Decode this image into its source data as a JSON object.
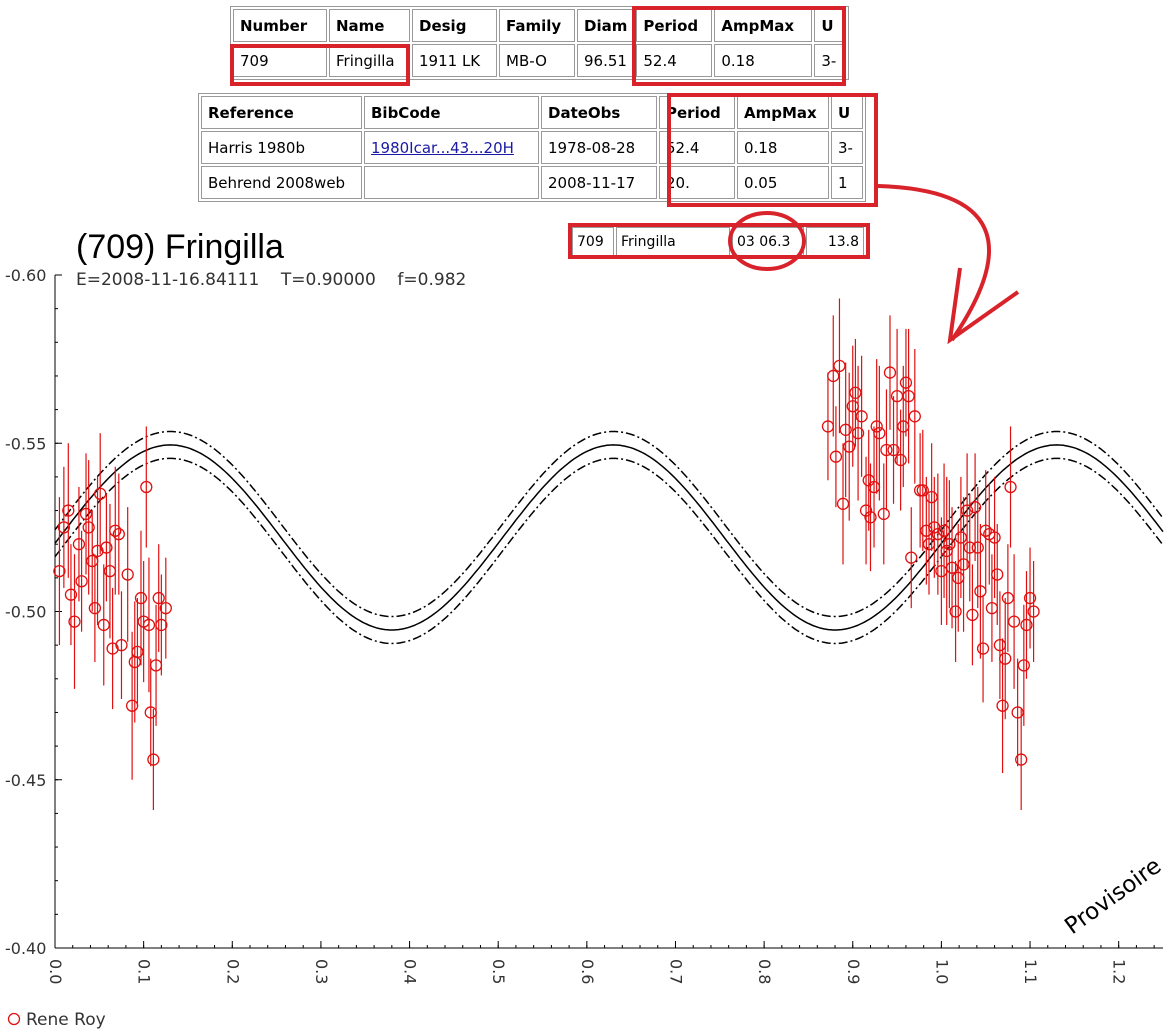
{
  "summary_table": {
    "headers": [
      "Number",
      "Name",
      "Desig",
      "Family",
      "Diam",
      "Period",
      "AmpMax",
      "U"
    ],
    "row": [
      "709",
      "Fringilla",
      "1911 LK",
      "MB-O",
      "96.51",
      "52.4",
      "0.18",
      "3-"
    ]
  },
  "reference_table": {
    "headers": [
      "Reference",
      "BibCode",
      "DateObs",
      "Period",
      "AmpMax",
      "U"
    ],
    "rows": [
      [
        "Harris 1980b",
        "1980Icar...43...20H",
        "1978-08-28",
        "52.4",
        "0.18",
        "3-"
      ],
      [
        "Behrend 2008web",
        "",
        "2008-11-17",
        "20.",
        "0.05",
        "1"
      ]
    ]
  },
  "ephemeris_row": [
    "709",
    "Fringilla",
    "03 06.3",
    "13.8"
  ],
  "highlight_color": "#d9232b",
  "chart_data": {
    "type": "scatter",
    "title": "(709) Fringilla",
    "subtitle": "E=2008-11-16.84111    T=0.90000    f=0.982",
    "watermark": "Provisoire",
    "xlim": [
      0.0,
      1.25
    ],
    "ylim": [
      -0.6,
      -0.4
    ],
    "y_reversed": true,
    "x_ticks": [
      "0.0",
      "0.1",
      "0.2",
      "0.3",
      "0.4",
      "0.5",
      "0.6",
      "0.7",
      "0.8",
      "0.9",
      "1.0",
      "1.1",
      "1.2"
    ],
    "y_ticks": [
      "-0.60",
      "-0.55",
      "-0.50",
      "-0.45",
      "-0.40"
    ],
    "legend": [
      {
        "name": "Rene Roy",
        "color": "#e01010",
        "marker": "open-circle"
      }
    ],
    "fit": {
      "mean": -0.522,
      "amplitude": 0.0275,
      "phase_of_min": 0.38,
      "band": 0.004
    },
    "series": [
      {
        "name": "Rene Roy",
        "color": "#e01010",
        "points": [
          {
            "x": 0.005,
            "y": -0.512,
            "e": 0.022
          },
          {
            "x": 0.01,
            "y": -0.525,
            "e": 0.018
          },
          {
            "x": 0.015,
            "y": -0.53,
            "e": 0.02
          },
          {
            "x": 0.018,
            "y": -0.505,
            "e": 0.015
          },
          {
            "x": 0.022,
            "y": -0.497,
            "e": 0.02
          },
          {
            "x": 0.027,
            "y": -0.52,
            "e": 0.017
          },
          {
            "x": 0.03,
            "y": -0.509,
            "e": 0.015
          },
          {
            "x": 0.035,
            "y": -0.529,
            "e": 0.018
          },
          {
            "x": 0.038,
            "y": -0.525,
            "e": 0.02
          },
          {
            "x": 0.042,
            "y": -0.515,
            "e": 0.015
          },
          {
            "x": 0.045,
            "y": -0.501,
            "e": 0.016
          },
          {
            "x": 0.048,
            "y": -0.518,
            "e": 0.022
          },
          {
            "x": 0.051,
            "y": -0.535,
            "e": 0.018
          },
          {
            "x": 0.055,
            "y": -0.496,
            "e": 0.018
          },
          {
            "x": 0.058,
            "y": -0.519,
            "e": 0.016
          },
          {
            "x": 0.062,
            "y": -0.512,
            "e": 0.02
          },
          {
            "x": 0.065,
            "y": -0.489,
            "e": 0.018
          },
          {
            "x": 0.068,
            "y": -0.524,
            "e": 0.019
          },
          {
            "x": 0.072,
            "y": -0.523,
            "e": 0.018
          },
          {
            "x": 0.075,
            "y": -0.49,
            "e": 0.016
          },
          {
            "x": 0.082,
            "y": -0.511,
            "e": 0.02
          },
          {
            "x": 0.087,
            "y": -0.472,
            "e": 0.022
          },
          {
            "x": 0.09,
            "y": -0.485,
            "e": 0.018
          },
          {
            "x": 0.093,
            "y": -0.488,
            "e": 0.016
          },
          {
            "x": 0.097,
            "y": -0.504,
            "e": 0.02
          },
          {
            "x": 0.1,
            "y": -0.497,
            "e": 0.018
          },
          {
            "x": 0.103,
            "y": -0.537,
            "e": 0.018
          },
          {
            "x": 0.106,
            "y": -0.496,
            "e": 0.02
          },
          {
            "x": 0.108,
            "y": -0.47,
            "e": 0.016
          },
          {
            "x": 0.111,
            "y": -0.456,
            "e": 0.015
          },
          {
            "x": 0.114,
            "y": -0.484,
            "e": 0.018
          },
          {
            "x": 0.117,
            "y": -0.504,
            "e": 0.016
          },
          {
            "x": 0.12,
            "y": -0.496,
            "e": 0.015
          },
          {
            "x": 0.125,
            "y": -0.501,
            "e": 0.015
          },
          {
            "x": 0.872,
            "y": -0.555,
            "e": 0.016
          },
          {
            "x": 0.878,
            "y": -0.57,
            "e": 0.018
          },
          {
            "x": 0.881,
            "y": -0.546,
            "e": 0.015
          },
          {
            "x": 0.885,
            "y": -0.573,
            "e": 0.02
          },
          {
            "x": 0.889,
            "y": -0.532,
            "e": 0.018
          },
          {
            "x": 0.892,
            "y": -0.554,
            "e": 0.02
          },
          {
            "x": 0.896,
            "y": -0.549,
            "e": 0.022
          },
          {
            "x": 0.9,
            "y": -0.561,
            "e": 0.018
          },
          {
            "x": 0.903,
            "y": -0.565,
            "e": 0.016
          },
          {
            "x": 0.906,
            "y": -0.553,
            "e": 0.02
          },
          {
            "x": 0.91,
            "y": -0.558,
            "e": 0.018
          },
          {
            "x": 0.915,
            "y": -0.53,
            "e": 0.016
          },
          {
            "x": 0.918,
            "y": -0.539,
            "e": 0.015
          },
          {
            "x": 0.92,
            "y": -0.528,
            "e": 0.016
          },
          {
            "x": 0.924,
            "y": -0.537,
            "e": 0.018
          },
          {
            "x": 0.927,
            "y": -0.555,
            "e": 0.02
          },
          {
            "x": 0.93,
            "y": -0.553,
            "e": 0.02
          },
          {
            "x": 0.935,
            "y": -0.529,
            "e": 0.015
          },
          {
            "x": 0.938,
            "y": -0.548,
            "e": 0.018
          },
          {
            "x": 0.942,
            "y": -0.571,
            "e": 0.017
          },
          {
            "x": 0.946,
            "y": -0.548,
            "e": 0.016
          },
          {
            "x": 0.95,
            "y": -0.564,
            "e": 0.02
          },
          {
            "x": 0.954,
            "y": -0.545,
            "e": 0.015
          },
          {
            "x": 0.957,
            "y": -0.555,
            "e": 0.018
          },
          {
            "x": 0.96,
            "y": -0.568,
            "e": 0.016
          },
          {
            "x": 0.963,
            "y": -0.564,
            "e": 0.02
          },
          {
            "x": 0.966,
            "y": -0.516,
            "e": 0.015
          },
          {
            "x": 0.97,
            "y": -0.558,
            "e": 0.02
          },
          {
            "x": 0.976,
            "y": -0.536,
            "e": 0.017
          },
          {
            "x": 0.979,
            "y": -0.536,
            "e": 0.018
          },
          {
            "x": 0.983,
            "y": -0.524,
            "e": 0.016
          },
          {
            "x": 0.986,
            "y": -0.52,
            "e": 0.015
          },
          {
            "x": 0.989,
            "y": -0.534,
            "e": 0.016
          },
          {
            "x": 0.992,
            "y": -0.525,
            "e": 0.015
          },
          {
            "x": 0.996,
            "y": -0.523,
            "e": 0.018
          },
          {
            "x": 1.0,
            "y": -0.512,
            "e": 0.016
          },
          {
            "x": 1.003,
            "y": -0.524,
            "e": 0.02
          },
          {
            "x": 1.006,
            "y": -0.518,
            "e": 0.022
          },
          {
            "x": 1.009,
            "y": -0.52,
            "e": 0.019
          },
          {
            "x": 1.012,
            "y": -0.513,
            "e": 0.018
          },
          {
            "x": 1.016,
            "y": -0.5,
            "e": 0.015
          },
          {
            "x": 1.019,
            "y": -0.51,
            "e": 0.016
          },
          {
            "x": 1.022,
            "y": -0.522,
            "e": 0.018
          },
          {
            "x": 1.025,
            "y": -0.514,
            "e": 0.02
          },
          {
            "x": 1.029,
            "y": -0.53,
            "e": 0.017
          },
          {
            "x": 1.032,
            "y": -0.519,
            "e": 0.016
          },
          {
            "x": 1.035,
            "y": -0.499,
            "e": 0.015
          },
          {
            "x": 1.038,
            "y": -0.531,
            "e": 0.016
          },
          {
            "x": 1.041,
            "y": -0.519,
            "e": 0.018
          },
          {
            "x": 1.044,
            "y": -0.506,
            "e": 0.02
          },
          {
            "x": 1.047,
            "y": -0.489,
            "e": 0.016
          },
          {
            "x": 1.05,
            "y": -0.524,
            "e": 0.018
          },
          {
            "x": 1.054,
            "y": -0.523,
            "e": 0.015
          },
          {
            "x": 1.057,
            "y": -0.501,
            "e": 0.016
          },
          {
            "x": 1.06,
            "y": -0.522,
            "e": 0.018
          },
          {
            "x": 1.063,
            "y": -0.511,
            "e": 0.015
          },
          {
            "x": 1.066,
            "y": -0.49,
            "e": 0.016
          },
          {
            "x": 1.069,
            "y": -0.472,
            "e": 0.02
          },
          {
            "x": 1.072,
            "y": -0.486,
            "e": 0.018
          },
          {
            "x": 1.075,
            "y": -0.504,
            "e": 0.016
          },
          {
            "x": 1.078,
            "y": -0.537,
            "e": 0.018
          },
          {
            "x": 1.082,
            "y": -0.497,
            "e": 0.02
          },
          {
            "x": 1.086,
            "y": -0.47,
            "e": 0.016
          },
          {
            "x": 1.09,
            "y": -0.456,
            "e": 0.015
          },
          {
            "x": 1.093,
            "y": -0.484,
            "e": 0.018
          },
          {
            "x": 1.096,
            "y": -0.496,
            "e": 0.016
          },
          {
            "x": 1.1,
            "y": -0.504,
            "e": 0.015
          },
          {
            "x": 1.104,
            "y": -0.5,
            "e": 0.015
          }
        ]
      }
    ]
  }
}
